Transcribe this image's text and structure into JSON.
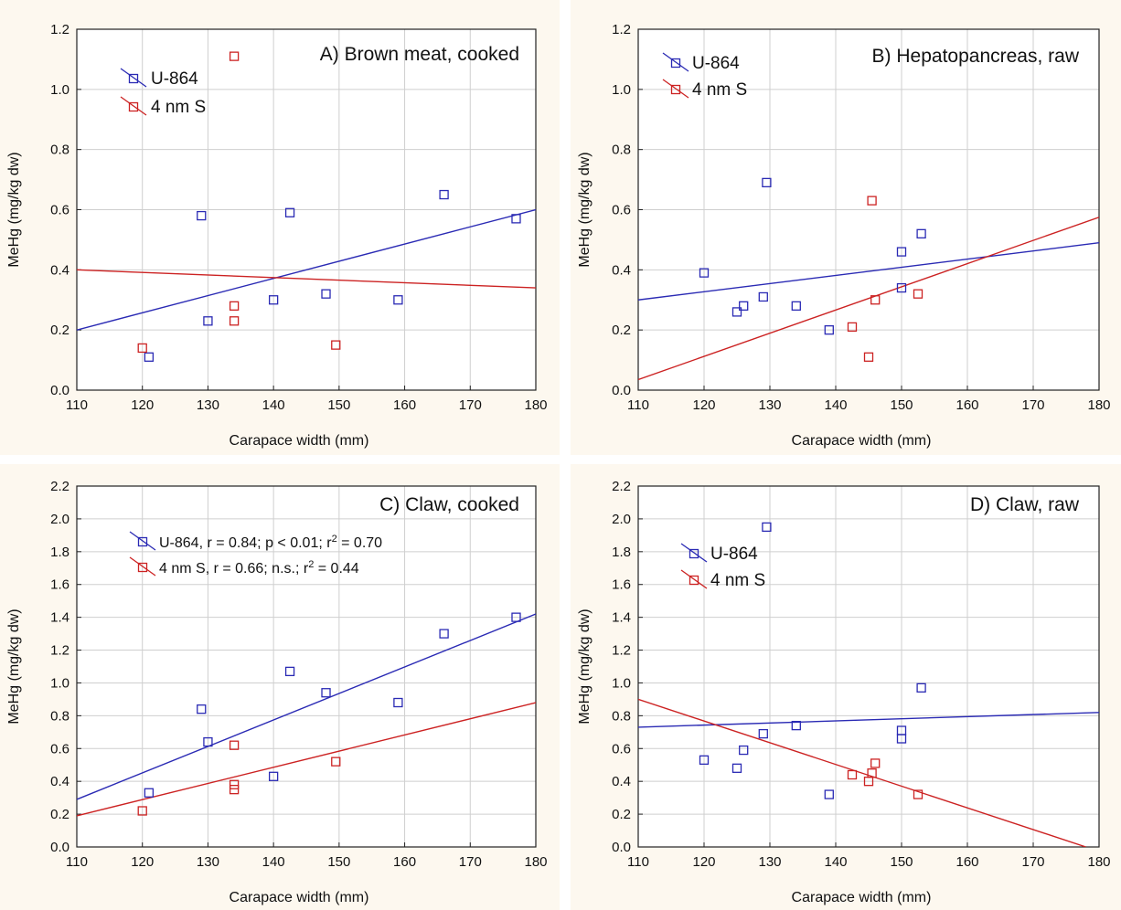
{
  "colors": {
    "u864": "#2a2ab4",
    "nm4s": "#cc2222"
  },
  "chart_data": [
    {
      "type": "scatter",
      "title": "A) Brown meat, cooked",
      "xlabel": "Carapace width (mm)",
      "ylabel": "MeHg (mg/kg dw)",
      "xlim": [
        110,
        180
      ],
      "ylim": [
        0,
        1.2
      ],
      "xticks": [
        "110",
        "120",
        "130",
        "140",
        "150",
        "160",
        "170",
        "180"
      ],
      "yticks": [
        "0.0",
        "0.2",
        "0.4",
        "0.6",
        "0.8",
        "1.0",
        "1.2"
      ],
      "grid": true,
      "legend_position": "top-left",
      "series": [
        {
          "name": "U-864",
          "color": "#2a2ab4",
          "x": [
            121,
            129,
            130,
            140,
            142.5,
            148,
            159,
            166,
            177
          ],
          "y": [
            0.11,
            0.58,
            0.23,
            0.3,
            0.59,
            0.32,
            0.3,
            0.65,
            0.57
          ],
          "fit": [
            [
              110,
              0.2
            ],
            [
              180,
              0.6
            ]
          ]
        },
        {
          "name": "4 nm S",
          "color": "#cc2222",
          "x": [
            120,
            134,
            134,
            134,
            149.5
          ],
          "y": [
            0.14,
            1.11,
            0.28,
            0.23,
            0.15
          ],
          "fit": [
            [
              110,
              0.4
            ],
            [
              180,
              0.34
            ]
          ]
        }
      ]
    },
    {
      "type": "scatter",
      "title": "B) Hepatopancreas, raw",
      "xlabel": "Carapace width (mm)",
      "ylabel": "MeHg (mg/kg dw)",
      "xlim": [
        110,
        180
      ],
      "ylim": [
        0,
        1.2
      ],
      "xticks": [
        "110",
        "120",
        "130",
        "140",
        "150",
        "160",
        "170",
        "180"
      ],
      "yticks": [
        "0.0",
        "0.2",
        "0.4",
        "0.6",
        "0.8",
        "1.0",
        "1.2"
      ],
      "grid": true,
      "legend_position": "top-left",
      "series": [
        {
          "name": "U-864",
          "color": "#2a2ab4",
          "x": [
            120,
            125,
            126,
            129,
            129.5,
            134,
            139,
            150,
            150,
            153
          ],
          "y": [
            0.39,
            0.26,
            0.28,
            0.31,
            0.69,
            0.28,
            0.2,
            0.46,
            0.34,
            0.52
          ],
          "fit": [
            [
              110,
              0.3
            ],
            [
              180,
              0.49
            ]
          ]
        },
        {
          "name": "4 nm S",
          "color": "#cc2222",
          "x": [
            142.5,
            145,
            145.5,
            146,
            152.5
          ],
          "y": [
            0.21,
            0.11,
            0.63,
            0.3,
            0.32
          ],
          "fit": [
            [
              110,
              0.035
            ],
            [
              180,
              0.575
            ]
          ]
        }
      ]
    },
    {
      "type": "scatter",
      "title": "C) Claw, cooked",
      "xlabel": "Carapace width (mm)",
      "ylabel": "MeHg (mg/kg dw)",
      "xlim": [
        110,
        180
      ],
      "ylim": [
        0,
        2.2
      ],
      "xticks": [
        "110",
        "120",
        "130",
        "140",
        "150",
        "160",
        "170",
        "180"
      ],
      "yticks": [
        "0.0",
        "0.2",
        "0.4",
        "0.6",
        "0.8",
        "1.0",
        "1.2",
        "1.4",
        "1.6",
        "1.8",
        "2.0",
        "2.2"
      ],
      "grid": true,
      "legend_position": "top-left",
      "series": [
        {
          "name": "U-864",
          "legend_stats": [
            ", r = 0.84; p < 0.01; r",
            "2",
            " = 0.70"
          ],
          "color": "#2a2ab4",
          "x": [
            121,
            129,
            130,
            140,
            142.5,
            148,
            159,
            166,
            177
          ],
          "y": [
            0.33,
            0.84,
            0.64,
            0.43,
            1.07,
            0.94,
            0.88,
            1.3,
            1.4
          ],
          "fit": [
            [
              110,
              0.29
            ],
            [
              180,
              1.42
            ]
          ]
        },
        {
          "name": "4 nm S",
          "legend_stats": [
            ", r = 0.66; n.s.; r",
            "2",
            " = 0.44"
          ],
          "color": "#cc2222",
          "x": [
            120,
            134,
            134,
            134,
            149.5
          ],
          "y": [
            0.22,
            0.62,
            0.38,
            0.35,
            0.52
          ],
          "fit": [
            [
              110,
              0.19
            ],
            [
              180,
              0.88
            ]
          ]
        }
      ]
    },
    {
      "type": "scatter",
      "title": "D) Claw, raw",
      "xlabel": "Carapace width (mm)",
      "ylabel": "MeHg (mg/kg dw)",
      "xlim": [
        110,
        180
      ],
      "ylim": [
        0,
        2.2
      ],
      "xticks": [
        "110",
        "120",
        "130",
        "140",
        "150",
        "160",
        "170",
        "180"
      ],
      "yticks": [
        "0.0",
        "0.2",
        "0.4",
        "0.6",
        "0.8",
        "1.0",
        "1.2",
        "1.4",
        "1.6",
        "1.8",
        "2.0",
        "2.2"
      ],
      "grid": true,
      "legend_position": "top-left",
      "series": [
        {
          "name": "U-864",
          "color": "#2a2ab4",
          "x": [
            120,
            125,
            126,
            129,
            129.5,
            134,
            139,
            150,
            150,
            153
          ],
          "y": [
            0.53,
            0.48,
            0.59,
            0.69,
            1.95,
            0.74,
            0.32,
            0.66,
            0.71,
            0.97
          ],
          "fit": [
            [
              110,
              0.73
            ],
            [
              180,
              0.82
            ]
          ]
        },
        {
          "name": "4 nm S",
          "color": "#cc2222",
          "x": [
            142.5,
            145,
            145.5,
            146,
            152.5
          ],
          "y": [
            0.44,
            0.4,
            0.45,
            0.51,
            0.32
          ],
          "fit": [
            [
              110,
              0.9
            ],
            [
              178,
              0.0
            ]
          ]
        }
      ]
    }
  ]
}
